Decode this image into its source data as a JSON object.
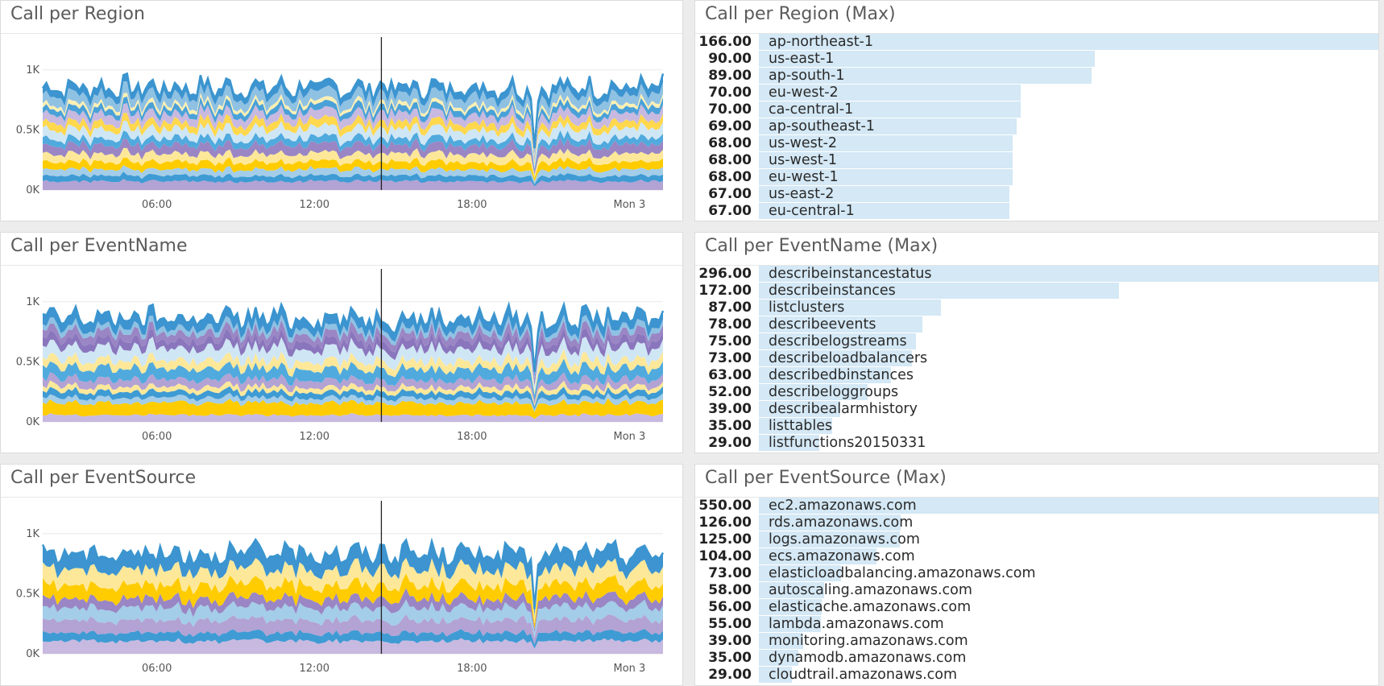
{
  "dashboard": {
    "panels": [
      {
        "title": "Call per Region",
        "chart_data": {
          "type": "area",
          "stacked": true,
          "title": "Call per Region",
          "x_ticks": [
            "06:00",
            "12:00",
            "18:00",
            "Mon 3"
          ],
          "y_ticks": [
            "0K",
            "0.5K",
            "1K"
          ],
          "ylim": [
            0,
            1300
          ],
          "cursor_label": "14:30",
          "series_colors": [
            "#b3a2d4",
            "#3f9bd4",
            "#a3cde8",
            "#ffcc00",
            "#fde89a",
            "#9a86c4",
            "#50aadd",
            "#cfe6f5",
            "#ffd84d",
            "#c8b9e0",
            "#4aa1d8",
            "#fff0b3",
            "#8fc1e3",
            "#3d94d0"
          ],
          "total_level": 850,
          "dip_depth": 0.6
        },
        "toplist": {
          "title": "Call per Region (Max)",
          "items": [
            {
              "value": "166.00",
              "label": "ap-northeast-1"
            },
            {
              "value": "90.00",
              "label": "us-east-1"
            },
            {
              "value": "89.00",
              "label": "ap-south-1"
            },
            {
              "value": "70.00",
              "label": "eu-west-2"
            },
            {
              "value": "70.00",
              "label": "ca-central-1"
            },
            {
              "value": "69.00",
              "label": "ap-southeast-1"
            },
            {
              "value": "68.00",
              "label": "us-west-2"
            },
            {
              "value": "68.00",
              "label": "us-west-1"
            },
            {
              "value": "68.00",
              "label": "eu-west-1"
            },
            {
              "value": "67.00",
              "label": "us-east-2"
            },
            {
              "value": "67.00",
              "label": "eu-central-1"
            }
          ]
        }
      },
      {
        "title": "Call per EventName",
        "chart_data": {
          "type": "area",
          "stacked": true,
          "title": "Call per EventName",
          "x_ticks": [
            "06:00",
            "12:00",
            "18:00",
            "Mon 3"
          ],
          "y_ticks": [
            "0K",
            "0.5K",
            "1K"
          ],
          "ylim": [
            0,
            1300
          ],
          "cursor_label": "14:30",
          "series_colors": [
            "#c8b9e0",
            "#ffcc00",
            "#a3cde8",
            "#3f9bd4",
            "#fde89a",
            "#b3a2d4",
            "#50aadd",
            "#fde89a",
            "#cfe6f5",
            "#8a76bd",
            "#9a86c4",
            "#8fc1e3",
            "#3d94d0"
          ],
          "total_level": 860,
          "dip_depth": 0.55
        },
        "toplist": {
          "title": "Call per EventName (Max)",
          "items": [
            {
              "value": "296.00",
              "label": "describeinstancestatus"
            },
            {
              "value": "172.00",
              "label": "describeinstances"
            },
            {
              "value": "87.00",
              "label": "listclusters"
            },
            {
              "value": "78.00",
              "label": "describeevents"
            },
            {
              "value": "75.00",
              "label": "describelogstreams"
            },
            {
              "value": "73.00",
              "label": "describeloadbalancers"
            },
            {
              "value": "63.00",
              "label": "describedbinstances"
            },
            {
              "value": "52.00",
              "label": "describeloggroups"
            },
            {
              "value": "39.00",
              "label": "describealarmhistory"
            },
            {
              "value": "35.00",
              "label": "listtables"
            },
            {
              "value": "29.00",
              "label": "listfunctions20150331"
            }
          ]
        }
      },
      {
        "title": "Call per EventSource",
        "chart_data": {
          "type": "area",
          "stacked": true,
          "title": "Call per EventSource",
          "x_ticks": [
            "06:00",
            "12:00",
            "18:00",
            "Mon 3"
          ],
          "y_ticks": [
            "0K",
            "0.5K",
            "1K"
          ],
          "ylim": [
            0,
            1300
          ],
          "cursor_label": "14:30",
          "series_colors": [
            "#c8b9e0",
            "#3f9bd4",
            "#b3a2d4",
            "#a3cde8",
            "#9a86c4",
            "#ffcc00",
            "#fde89a",
            "#3d94d0"
          ],
          "total_level": 830,
          "dip_depth": 0.6
        },
        "toplist": {
          "title": "Call per EventSource (Max)",
          "items": [
            {
              "value": "550.00",
              "label": "ec2.amazonaws.com"
            },
            {
              "value": "126.00",
              "label": "rds.amazonaws.com"
            },
            {
              "value": "125.00",
              "label": "logs.amazonaws.com"
            },
            {
              "value": "104.00",
              "label": "ecs.amazonaws.com"
            },
            {
              "value": "73.00",
              "label": "elasticloadbalancing.amazonaws.com"
            },
            {
              "value": "58.00",
              "label": "autoscaling.amazonaws.com"
            },
            {
              "value": "56.00",
              "label": "elasticache.amazonaws.com"
            },
            {
              "value": "55.00",
              "label": "lambda.amazonaws.com"
            },
            {
              "value": "39.00",
              "label": "monitoring.amazonaws.com"
            },
            {
              "value": "35.00",
              "label": "dynamodb.amazonaws.com"
            },
            {
              "value": "29.00",
              "label": "cloudtrail.amazonaws.com"
            }
          ]
        }
      }
    ]
  }
}
